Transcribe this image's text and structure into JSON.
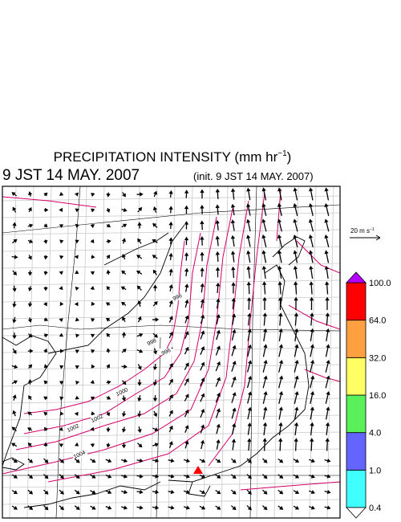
{
  "header": {
    "title": {
      "text": "PRECIPITATION INTENSITY (mm hr",
      "sup": "−1",
      "close": ")"
    },
    "valid_time": "9 JST 14 MAY. 2007",
    "init_time": "(init. 9 JST 14 MAY. 2007)"
  },
  "wind_scale": {
    "text": "20 m s",
    "sup": "−1"
  },
  "colorbar": {
    "levels": [
      0.4,
      {
        "value": 1,
        "label": "1.0"
      },
      {
        "value": 4,
        "label": "4.0"
      },
      {
        "value": 16,
        "label": "16.0"
      },
      {
        "value": 32,
        "label": "32.0"
      },
      {
        "value": 64,
        "label": "64.0"
      },
      {
        "value": 100,
        "label": "100.0"
      }
    ],
    "colors": [
      "#40ffff",
      "#6464ff",
      "#5af05a",
      "#ffff64",
      "#ffa040",
      "#ff0000"
    ],
    "over_color": "#b400ff",
    "under_color": "#ffffff"
  },
  "contour_labels": [
    996,
    996,
    998,
    1000,
    1002,
    1002,
    1004
  ]
}
